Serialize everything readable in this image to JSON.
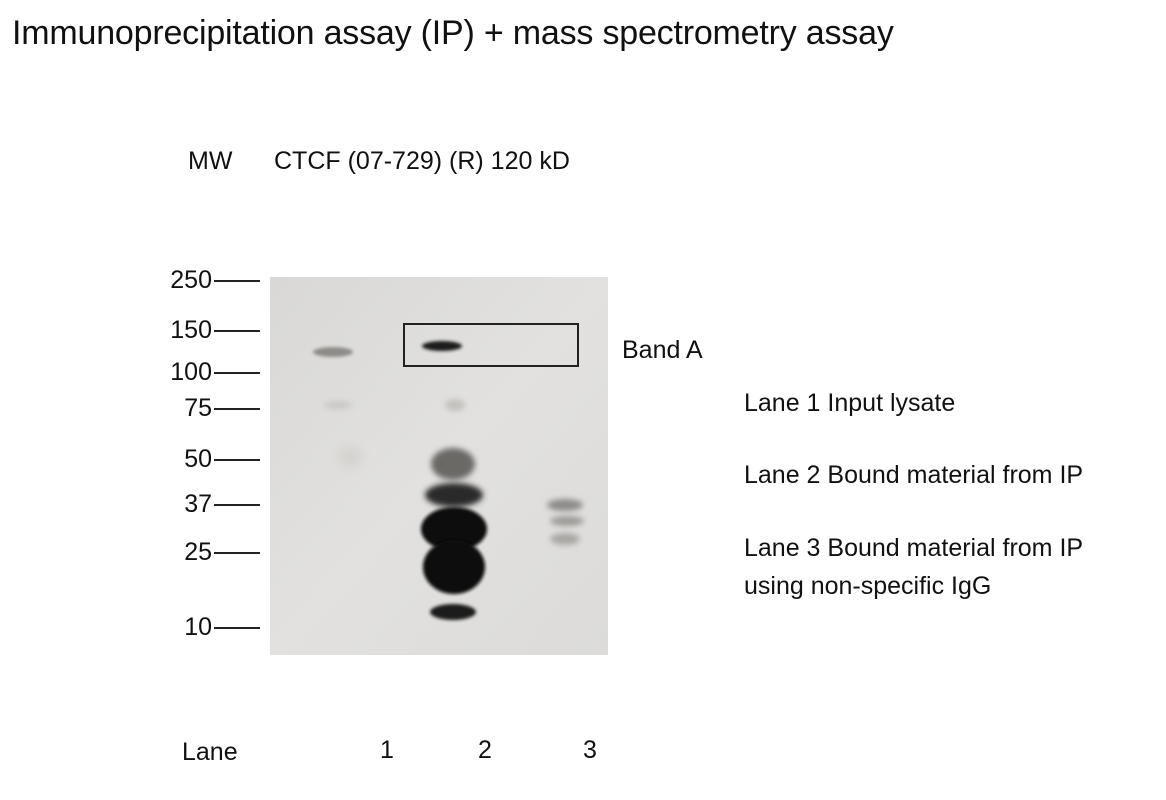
{
  "title": "Immunoprecipitation assay (IP) +  mass spectrometry assay",
  "header": {
    "mw": "MW",
    "antibody": "CTCF (07-729) (R) 120 kD"
  },
  "mw_markers": [
    "250",
    "150",
    "100",
    "75",
    "50",
    "37",
    "25",
    "10"
  ],
  "band_label": "Band A",
  "legend": [
    "Lane 1 Input lysate",
    "Lane 2 Bound material from IP",
    "Lane 3 Bound material from IP",
    "using non-specific IgG"
  ],
  "lanes": {
    "label": "Lane",
    "numbers": [
      "1",
      "2",
      "3"
    ]
  },
  "colors": {
    "membrane": "#dedddb",
    "band_dark": "#0d0d0d",
    "box": "#222222"
  }
}
